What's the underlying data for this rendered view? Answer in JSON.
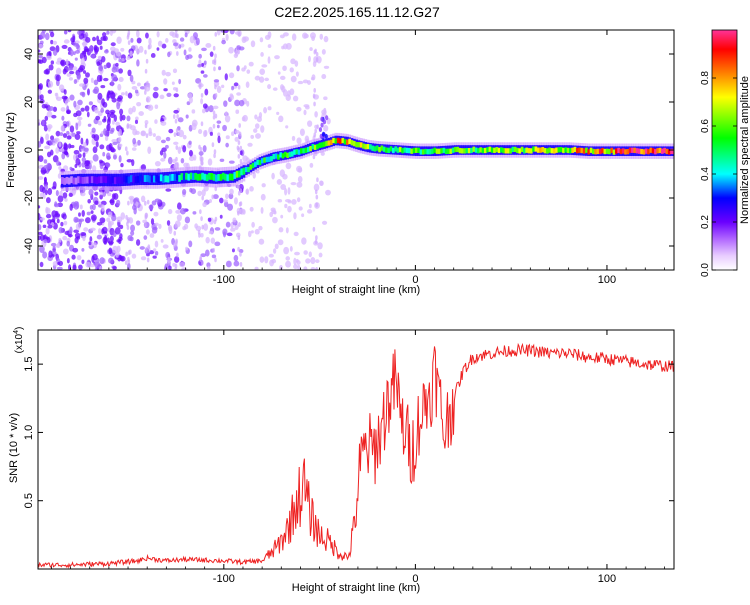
{
  "title": "C2E2.2025.165.11.12.G27",
  "chart_data": [
    {
      "type": "heatmap",
      "panel": "spectrogram",
      "xlabel": "Height of straight line (km)",
      "ylabel": "Frequency (Hz)",
      "xlim": [
        -197,
        135
      ],
      "ylim": [
        -50,
        50
      ],
      "x_ticks": [
        -100,
        0,
        100
      ],
      "x_tick_labels": [
        "-100",
        "0",
        "100"
      ],
      "y_ticks": [
        -40,
        -20,
        0,
        20,
        40
      ],
      "y_tick_labels": [
        "-40",
        "-20",
        "0",
        "20",
        "40"
      ],
      "ridge": {
        "x": [
          -195,
          -185,
          -175,
          -165,
          -155,
          -145,
          -135,
          -125,
          -115,
          -105,
          -95,
          -88,
          -82,
          -75,
          -68,
          -60,
          -55,
          -48,
          -42,
          -36,
          -30,
          -25,
          -20,
          -10,
          0,
          10,
          20,
          40,
          60,
          80,
          90,
          100,
          110,
          120,
          135
        ],
        "y": [
          -13,
          -13,
          -12.5,
          -12.5,
          -12.5,
          -12,
          -12,
          -11.5,
          -11,
          -11.5,
          -11,
          -8,
          -5,
          -3,
          -2,
          -0.5,
          1,
          2.5,
          4,
          3.5,
          2,
          1,
          0.5,
          0,
          -0.5,
          -0.5,
          0,
          0,
          0,
          0,
          -0.5,
          -0.5,
          -0.5,
          -0.5,
          -0.5
        ],
        "amplitude": [
          0.1,
          0.12,
          0.15,
          0.2,
          0.25,
          0.3,
          0.35,
          0.4,
          0.45,
          0.45,
          0.5,
          0.5,
          0.5,
          0.5,
          0.5,
          0.5,
          0.55,
          0.6,
          0.75,
          0.7,
          0.65,
          0.6,
          0.55,
          0.55,
          0.55,
          0.55,
          0.55,
          0.6,
          0.65,
          0.7,
          0.75,
          0.8,
          0.9,
          0.95,
          1.0
        ]
      },
      "colorbar": {
        "label": "Normalized spectral amplitude",
        "range": [
          0,
          1
        ],
        "ticks": [
          0,
          0.2,
          0.4,
          0.6,
          0.8
        ],
        "tick_labels": [
          "0.0",
          "0.2",
          "0.4",
          "0.6",
          "0.8"
        ],
        "colors": [
          "#ffffff",
          "#cc99ff",
          "#7f00ff",
          "#0000ff",
          "#00ffff",
          "#00ff00",
          "#ffff00",
          "#ff8000",
          "#ff0000",
          "#ff3399"
        ]
      }
    },
    {
      "type": "line",
      "panel": "snr",
      "xlabel": "Height of straight line (km)",
      "ylabel": "SNR (10 * v/v)",
      "y_multiplier": "(x10",
      "y_multiplier_exp": "4",
      "y_multiplier_close": ")",
      "xlim": [
        -197,
        135
      ],
      "ylim": [
        0,
        1.75
      ],
      "x_ticks": [
        -100,
        0,
        100
      ],
      "x_tick_labels": [
        "-100",
        "0",
        "100"
      ],
      "y_ticks": [
        0.5,
        1.0,
        1.5
      ],
      "y_tick_labels": [
        "0.5",
        "1.0",
        "1.5"
      ],
      "line_color": "#ee2222",
      "series": [
        {
          "x": [
            -197,
            -180,
            -160,
            -145,
            -140,
            -130,
            -120,
            -100,
            -90,
            -80,
            -75,
            -70,
            -65,
            -62,
            -58,
            -55,
            -50,
            -45,
            -40,
            -35,
            -32,
            -30,
            -28,
            -25,
            -22,
            -18,
            -15,
            -12,
            -10,
            -8,
            -5,
            -2,
            0,
            2,
            5,
            8,
            10,
            12,
            15,
            18,
            20,
            25,
            30,
            40,
            50,
            60,
            70,
            80,
            90,
            100,
            110,
            120,
            135
          ],
          "y": [
            0.03,
            0.03,
            0.04,
            0.06,
            0.08,
            0.06,
            0.07,
            0.06,
            0.05,
            0.06,
            0.12,
            0.2,
            0.35,
            0.5,
            0.6,
            0.4,
            0.25,
            0.2,
            0.12,
            0.08,
            0.3,
            0.6,
            0.8,
            0.9,
            0.85,
            1.0,
            1.2,
            1.3,
            1.4,
            1.1,
            1.0,
            0.85,
            0.95,
            1.1,
            1.2,
            1.3,
            1.45,
            1.3,
            1.0,
            1.15,
            1.25,
            1.45,
            1.55,
            1.58,
            1.6,
            1.6,
            1.58,
            1.58,
            1.55,
            1.54,
            1.52,
            1.5,
            1.48
          ]
        }
      ]
    }
  ]
}
